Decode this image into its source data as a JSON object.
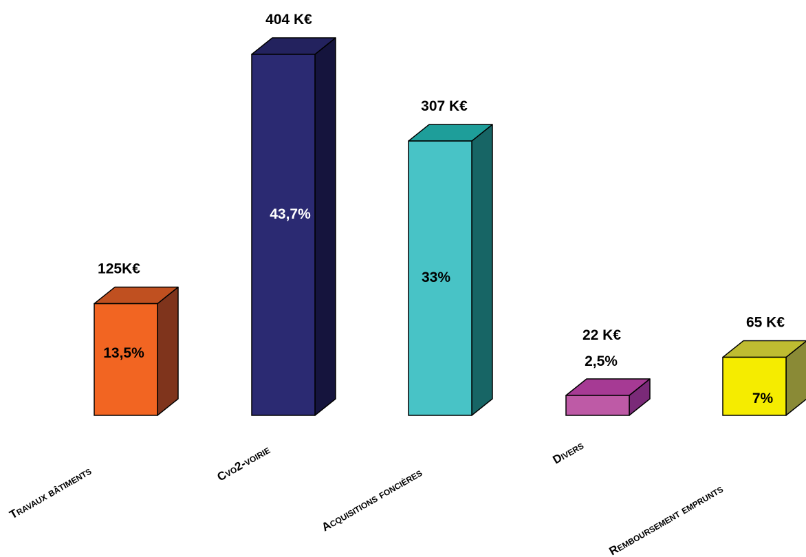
{
  "chart_data": {
    "type": "bar",
    "style": "3d-column",
    "title": "",
    "xlabel": "",
    "ylabel": "",
    "grid": false,
    "legend": "none",
    "categories": [
      "Travaux bâtiments",
      "Cvo2-voirie",
      "Acquisitions foncières",
      "Divers",
      "Remboursement  emprunts"
    ],
    "values": [
      125,
      404,
      307,
      22,
      65
    ],
    "value_labels": [
      "125K€",
      "404 K€",
      "307 K€",
      "22 K€",
      "65 K€"
    ],
    "percent_labels": [
      "13,5%",
      "43,7%",
      "33%",
      "2,5%",
      "7%"
    ],
    "colors": [
      {
        "front": "#F26522",
        "top": "#C05020",
        "side": "#7F341C"
      },
      {
        "front": "#2B2A72",
        "top": "#23225E",
        "side": "#15143D"
      },
      {
        "front": "#48C3C6",
        "top": "#1E9E9A",
        "side": "#176565"
      },
      {
        "front": "#BE5AA6",
        "top": "#A63A94",
        "side": "#7A2A78"
      },
      {
        "front": "#F5EC00",
        "top": "#BFBC31",
        "side": "#8A8A36"
      }
    ],
    "percent_label_colors": [
      "#000000",
      "#FFFFFF",
      "#000000",
      "#000000",
      "#000000"
    ],
    "ylim": [
      0,
      404
    ]
  }
}
